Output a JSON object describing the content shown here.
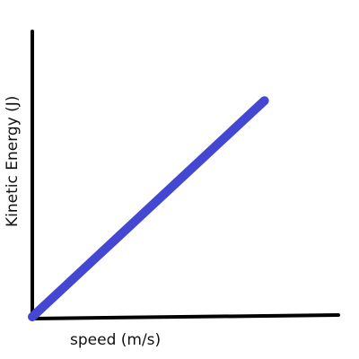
{
  "chart_data": {
    "type": "line",
    "title": "",
    "xlabel": "speed (m/s)",
    "ylabel": "Kinetic Energy (J)",
    "ticks": false,
    "grid": false,
    "legend": false,
    "series": [
      {
        "color": "#4447d2",
        "x": [
          0,
          1
        ],
        "y": [
          0,
          1
        ]
      }
    ],
    "xlim": [
      0,
      1.28
    ],
    "ylim": [
      0,
      1.2
    ],
    "axis_color": "#000000"
  }
}
